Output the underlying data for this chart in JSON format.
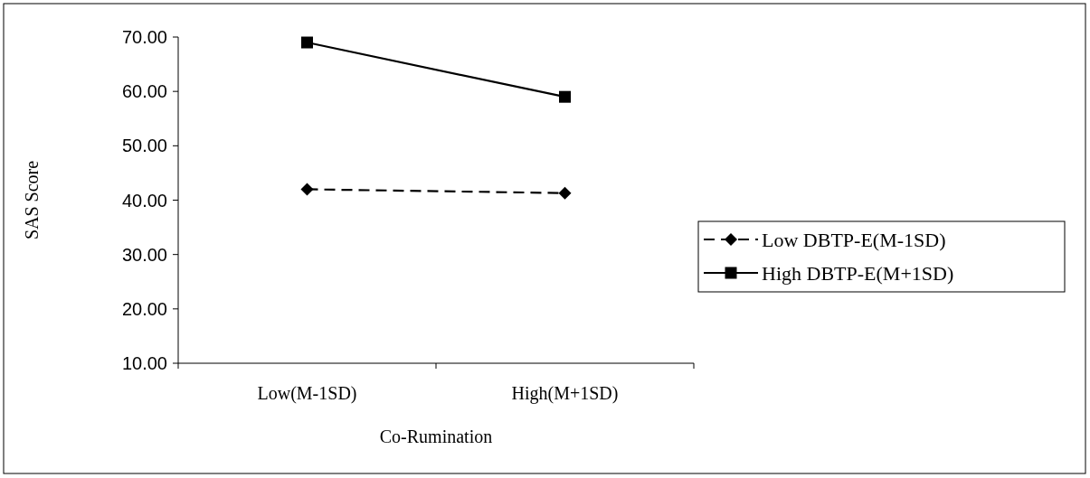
{
  "chart_data": {
    "type": "line",
    "xlabel": "Co-Rumination",
    "ylabel": "SAS Score",
    "categories": [
      "Low(M-1SD)",
      "High(M+1SD)"
    ],
    "series": [
      {
        "name": "Low DBTP-E(M-1SD)",
        "color": "#000000",
        "values": [
          42.0,
          41.3
        ],
        "line_style": "dashed",
        "marker": "diamond"
      },
      {
        "name": "High DBTP-E(M+1SD)",
        "color": "#000000",
        "values": [
          69.0,
          59.0
        ],
        "line_style": "solid",
        "marker": "square"
      }
    ],
    "ylim": [
      10,
      70
    ],
    "yticks": [
      {
        "value": 10,
        "label": "10.00"
      },
      {
        "value": 20,
        "label": "20.00"
      },
      {
        "value": 30,
        "label": "30.00"
      },
      {
        "value": 40,
        "label": "40.00"
      },
      {
        "value": 50,
        "label": "50.00"
      },
      {
        "value": 60,
        "label": "60.00"
      },
      {
        "value": 70,
        "label": "70.00"
      }
    ],
    "legend": "right"
  }
}
